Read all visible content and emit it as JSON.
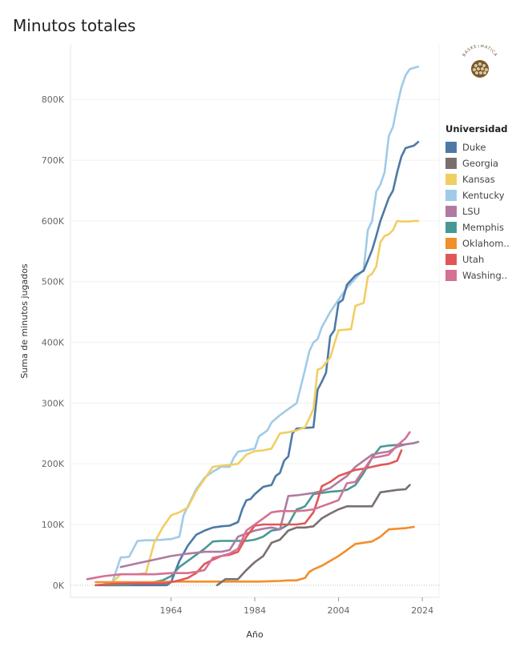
{
  "title": "Minutos totales",
  "logo_text": "BASKETMATICA",
  "chart_data": {
    "type": "line",
    "title": "Minutos totales",
    "xlabel": "Año",
    "ylabel": "Suma de minutos jugados",
    "xlim": [
      1940,
      2028
    ],
    "ylim": [
      -20000,
      890000
    ],
    "xticks": [
      1964,
      1984,
      2004,
      2024
    ],
    "yticks": [
      0,
      100000,
      200000,
      300000,
      400000,
      500000,
      600000,
      700000,
      800000
    ],
    "ytick_labels": [
      "0K",
      "100K",
      "200K",
      "300K",
      "400K",
      "500K",
      "600K",
      "700K",
      "800K"
    ],
    "legend_title": "Universidad",
    "series": [
      {
        "name": "Kentucky",
        "label": "Kentucky",
        "color": "#a0cbe8",
        "x": [
          1948,
          1950,
          1952,
          1953,
          1954,
          1956,
          1958,
          1960,
          1962,
          1964,
          1966,
          1967,
          1968,
          1970,
          1972,
          1974,
          1976,
          1978,
          1979,
          1980,
          1982,
          1984,
          1985,
          1987,
          1988,
          1990,
          1992,
          1994,
          1996,
          1997,
          1998,
          1999,
          2000,
          2002,
          2004,
          2006,
          2008,
          2010,
          2011,
          2012,
          2013,
          2014,
          2015,
          2016,
          2017,
          2018,
          2019,
          2020,
          2021,
          2022,
          2023
        ],
        "y": [
          2000,
          5000,
          46000,
          46000,
          47000,
          73000,
          74000,
          74000,
          75000,
          76000,
          80000,
          115000,
          130000,
          158000,
          177000,
          187000,
          195000,
          195000,
          210000,
          220000,
          222000,
          225000,
          245000,
          255000,
          268000,
          280000,
          290000,
          300000,
          355000,
          385000,
          400000,
          405000,
          425000,
          450000,
          470000,
          490000,
          505000,
          520000,
          585000,
          600000,
          648000,
          660000,
          680000,
          740000,
          755000,
          790000,
          820000,
          840000,
          850000,
          852000,
          854000
        ]
      },
      {
        "name": "Duke",
        "label": "Duke",
        "color": "#4e79a7",
        "x": [
          1946,
          1952,
          1955,
          1958,
          1960,
          1962,
          1963,
          1964,
          1966,
          1968,
          1970,
          1972,
          1974,
          1976,
          1978,
          1980,
          1981,
          1982,
          1983,
          1984,
          1986,
          1988,
          1989,
          1990,
          1991,
          1992,
          1993,
          1994,
          1996,
          1998,
          1999,
          2000,
          2001,
          2002,
          2003,
          2004,
          2005,
          2006,
          2008,
          2010,
          2012,
          2013,
          2014,
          2016,
          2017,
          2018,
          2019,
          2020,
          2021,
          2022,
          2023
        ],
        "y": [
          0,
          0,
          0,
          0,
          0,
          0,
          0,
          5000,
          40000,
          65000,
          83000,
          90000,
          95000,
          97000,
          98000,
          104000,
          125000,
          140000,
          142000,
          150000,
          162000,
          165000,
          180000,
          185000,
          205000,
          212000,
          250000,
          258000,
          259000,
          260000,
          322000,
          335000,
          350000,
          410000,
          420000,
          465000,
          470000,
          495000,
          510000,
          518000,
          552000,
          575000,
          600000,
          638000,
          650000,
          680000,
          706000,
          720000,
          722000,
          724000,
          730000
        ]
      },
      {
        "name": "Kansas",
        "label": "Kansas",
        "color": "#f1ce63",
        "x": [
          1948,
          1950,
          1952,
          1954,
          1956,
          1958,
          1960,
          1962,
          1964,
          1966,
          1968,
          1970,
          1972,
          1974,
          1976,
          1978,
          1980,
          1982,
          1984,
          1986,
          1988,
          1990,
          1992,
          1994,
          1996,
          1998,
          1999,
          2000,
          2002,
          2004,
          2006,
          2007,
          2008,
          2010,
          2011,
          2012,
          2013,
          2014,
          2015,
          2016,
          2017,
          2018,
          2019,
          2020,
          2021,
          2022,
          2023
        ],
        "y": [
          0,
          5000,
          18000,
          18000,
          18000,
          20000,
          70000,
          95000,
          115000,
          120000,
          128000,
          155000,
          175000,
          195000,
          197000,
          198000,
          200000,
          215000,
          221000,
          222000,
          225000,
          250000,
          252000,
          255000,
          260000,
          290000,
          355000,
          358000,
          375000,
          420000,
          421000,
          422000,
          460000,
          465000,
          508000,
          513000,
          525000,
          565000,
          575000,
          578000,
          585000,
          600000,
          599000,
          599000,
          599000,
          600000,
          600000
        ]
      },
      {
        "name": "Memphis",
        "label": "Memphis",
        "color": "#499894",
        "x": [
          1948,
          1952,
          1956,
          1960,
          1962,
          1964,
          1966,
          1968,
          1970,
          1972,
          1974,
          1976,
          1978,
          1980,
          1982,
          1984,
          1986,
          1988,
          1990,
          1992,
          1994,
          1995,
          1996,
          1997,
          1998,
          2000,
          2002,
          2004,
          2006,
          2008,
          2010,
          2012,
          2014,
          2016,
          2018,
          2020,
          2022,
          2023
        ],
        "y": [
          0,
          0,
          3000,
          5000,
          8000,
          15000,
          30000,
          40000,
          50000,
          60000,
          72000,
          73000,
          73000,
          73000,
          73000,
          75000,
          80000,
          90000,
          92000,
          100000,
          125000,
          127000,
          130000,
          140000,
          150000,
          152000,
          154000,
          155000,
          157000,
          165000,
          185000,
          210000,
          228000,
          230000,
          231000,
          232000,
          234000,
          236000
        ]
      },
      {
        "name": "Oklahoma",
        "label": "Oklahom..",
        "color": "#f28e2b",
        "x": [
          1946,
          1950,
          1955,
          1960,
          1965,
          1970,
          1975,
          1980,
          1985,
          1990,
          1992,
          1994,
          1996,
          1997,
          1998,
          2000,
          2002,
          2004,
          2006,
          2008,
          2010,
          2012,
          2014,
          2016,
          2018,
          2020,
          2022
        ],
        "y": [
          5000,
          5000,
          5000,
          5000,
          6000,
          6000,
          6000,
          6000,
          6000,
          7000,
          8000,
          8000,
          12000,
          22000,
          26000,
          32000,
          40000,
          48000,
          58000,
          68000,
          70000,
          72000,
          80000,
          92000,
          93000,
          94000,
          96000
        ]
      },
      {
        "name": "Georgia",
        "label": "Georgia",
        "color": "#79706e",
        "x": [
          1975,
          1977,
          1980,
          1982,
          1984,
          1986,
          1988,
          1990,
          1992,
          1994,
          1996,
          1998,
          2000,
          2002,
          2004,
          2006,
          2008,
          2010,
          2012,
          2014,
          2016,
          2018,
          2020,
          2021
        ],
        "y": [
          0,
          10000,
          10000,
          25000,
          38000,
          48000,
          70000,
          75000,
          90000,
          95000,
          95000,
          97000,
          110000,
          118000,
          125000,
          130000,
          130000,
          130000,
          130000,
          153000,
          155000,
          157000,
          158000,
          165000
        ]
      },
      {
        "name": "LSU",
        "label": "LSU",
        "color": "#b07aa1",
        "x": [
          1952,
          1956,
          1960,
          1964,
          1968,
          1972,
          1976,
          1978,
          1980,
          1982,
          1984,
          1986,
          1988,
          1990,
          1992,
          1994,
          1996,
          1998,
          2000,
          2002,
          2004,
          2006,
          2008,
          2010,
          2012,
          2014,
          2016,
          2018,
          2020,
          2022,
          2023
        ],
        "y": [
          30000,
          36000,
          42000,
          48000,
          52000,
          55000,
          55000,
          58000,
          80000,
          85000,
          90000,
          93000,
          95000,
          92000,
          147000,
          148000,
          150000,
          152000,
          155000,
          160000,
          170000,
          180000,
          195000,
          205000,
          215000,
          218000,
          220000,
          228000,
          232000,
          234000,
          236000
        ]
      },
      {
        "name": "Utah",
        "label": "Utah",
        "color": "#e15759",
        "x": [
          1946,
          1950,
          1955,
          1960,
          1962,
          1964,
          1966,
          1968,
          1970,
          1972,
          1974,
          1976,
          1978,
          1980,
          1982,
          1984,
          1986,
          1988,
          1990,
          1992,
          1994,
          1996,
          1998,
          1999,
          2000,
          2002,
          2004,
          2006,
          2008,
          2010,
          2012,
          2014,
          2016,
          2018,
          2019
        ],
        "y": [
          0,
          2000,
          3000,
          3000,
          3000,
          5000,
          8000,
          12000,
          20000,
          35000,
          42000,
          48000,
          50000,
          55000,
          80000,
          98000,
          100000,
          100000,
          100000,
          100000,
          100000,
          102000,
          120000,
          140000,
          163000,
          170000,
          180000,
          185000,
          190000,
          192000,
          195000,
          198000,
          200000,
          205000,
          222000
        ]
      },
      {
        "name": "Washington",
        "label": "Washing..",
        "color": "#d37295",
        "x": [
          1944,
          1948,
          1952,
          1956,
          1960,
          1964,
          1968,
          1970,
          1972,
          1974,
          1976,
          1978,
          1980,
          1982,
          1984,
          1986,
          1988,
          1990,
          1992,
          1994,
          1996,
          1998,
          2000,
          2002,
          2004,
          2006,
          2008,
          2010,
          2012,
          2014,
          2016,
          2018,
          2020,
          2021
        ],
        "y": [
          10000,
          15000,
          18000,
          18000,
          18000,
          20000,
          20000,
          22000,
          25000,
          45000,
          48000,
          52000,
          60000,
          90000,
          100000,
          110000,
          120000,
          122000,
          122000,
          122000,
          123000,
          125000,
          130000,
          135000,
          140000,
          168000,
          170000,
          190000,
          210000,
          212000,
          215000,
          230000,
          242000,
          252000
        ]
      }
    ]
  }
}
